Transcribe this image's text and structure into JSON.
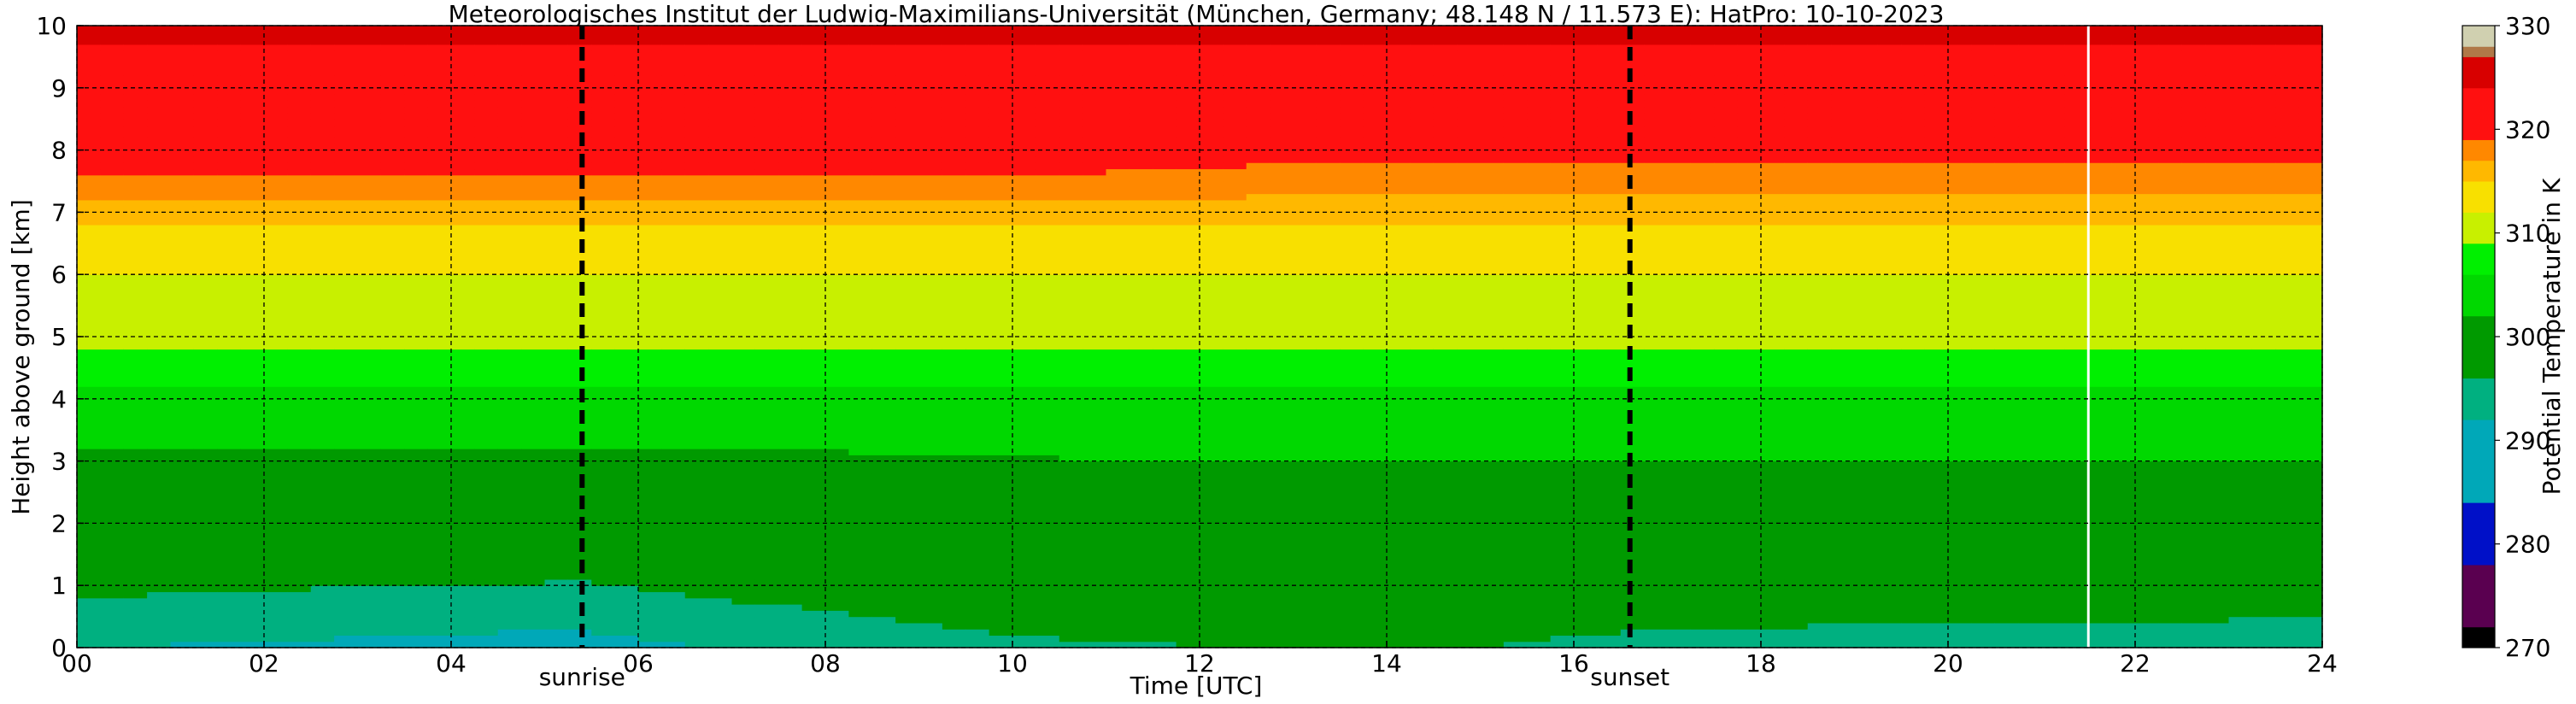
{
  "chart_data": {
    "type": "heatmap",
    "title": "Meteorologisches Institut der Ludwig-Maximilians-Universität (München, Germany; 48.148 N / 11.573 E):    HatPro: 10-10-2023",
    "xlabel": "Time [UTC]",
    "ylabel": "Height above ground [km]",
    "colorbar_label": "Potential Temperature in K",
    "xlim": [
      0,
      24
    ],
    "ylim": [
      0,
      10
    ],
    "clim": [
      270,
      330
    ],
    "x_ticks": [
      "00",
      "02",
      "04",
      "06",
      "08",
      "10",
      "12",
      "14",
      "16",
      "18",
      "20",
      "22",
      "24"
    ],
    "y_ticks": [
      "0",
      "1",
      "2",
      "3",
      "4",
      "5",
      "6",
      "7",
      "8",
      "9",
      "10"
    ],
    "colorbar_ticks": [
      "270",
      "280",
      "290",
      "300",
      "310",
      "320",
      "330"
    ],
    "grid": true,
    "events": [
      {
        "label": "sunrise",
        "time": 5.4
      },
      {
        "label": "sunset",
        "time": 16.6
      }
    ],
    "data_gap_time": 21.5,
    "colormap": [
      {
        "from": 270,
        "to": 272,
        "color": "#000000"
      },
      {
        "from": 272,
        "to": 278,
        "color": "#5a0050"
      },
      {
        "from": 278,
        "to": 284,
        "color": "#0010c8"
      },
      {
        "from": 284,
        "to": 292,
        "color": "#00a8b8"
      },
      {
        "from": 292,
        "to": 296,
        "color": "#00b080"
      },
      {
        "from": 296,
        "to": 302,
        "color": "#009a00"
      },
      {
        "from": 302,
        "to": 306,
        "color": "#00d800"
      },
      {
        "from": 306,
        "to": 309,
        "color": "#00f000"
      },
      {
        "from": 309,
        "to": 312,
        "color": "#c8f000"
      },
      {
        "from": 312,
        "to": 315,
        "color": "#f8e000"
      },
      {
        "from": 315,
        "to": 317,
        "color": "#ffb800"
      },
      {
        "from": 317,
        "to": 319,
        "color": "#ff8800"
      },
      {
        "from": 319,
        "to": 324,
        "color": "#ff1010"
      },
      {
        "from": 324,
        "to": 327,
        "color": "#d80000"
      },
      {
        "from": 327,
        "to": 328,
        "color": "#b07848"
      },
      {
        "from": 328,
        "to": 330,
        "color": "#d0d0b0"
      }
    ],
    "profiles": [
      {
        "time": 0,
        "heights": [
          0,
          0.3,
          0.8,
          1.6,
          2.5,
          3.6,
          4.2,
          4.8,
          5.6,
          6.4,
          7.0,
          7.6,
          8.0,
          9.0,
          10
        ],
        "values": [
          292,
          293,
          296,
          298,
          300,
          303,
          306,
          309,
          311,
          313,
          316,
          319,
          320,
          322,
          325
        ]
      },
      {
        "time": 5.4,
        "heights": [
          0,
          0.3,
          0.8,
          1.6,
          2.5,
          3.6,
          4.2,
          4.8,
          5.6,
          6.4,
          7.0,
          7.6,
          8.0,
          9.0,
          10
        ],
        "values": [
          291,
          292,
          295,
          298,
          300,
          303,
          306,
          309,
          311,
          313,
          316,
          319,
          320,
          322,
          325
        ]
      },
      {
        "time": 10.5,
        "heights": [
          0,
          0.3,
          0.8,
          1.6,
          2.5,
          3.6,
          4.2,
          4.8,
          5.6,
          6.4,
          7.0,
          7.6,
          8.0,
          9.0,
          10
        ],
        "values": [
          295,
          297,
          299,
          300,
          301,
          303,
          306,
          309,
          311,
          313,
          316,
          319,
          320,
          322,
          325
        ]
      },
      {
        "time": 14,
        "heights": [
          0,
          0.3,
          0.8,
          1.6,
          2.5,
          3.6,
          4.2,
          4.8,
          5.6,
          6.4,
          7.0,
          7.6,
          8.0,
          9.0,
          10
        ],
        "values": [
          297,
          298,
          299,
          300,
          301,
          303,
          306,
          309,
          311,
          313,
          316,
          318,
          320,
          322,
          325
        ]
      },
      {
        "time": 17,
        "heights": [
          0,
          0.3,
          0.8,
          1.6,
          2.5,
          3.6,
          4.2,
          4.8,
          5.6,
          6.4,
          7.0,
          7.6,
          8.0,
          9.0,
          10
        ],
        "values": [
          294,
          296,
          298,
          300,
          301,
          303,
          306,
          309,
          311,
          313,
          316,
          318,
          320,
          322,
          325
        ]
      },
      {
        "time": 24,
        "heights": [
          0,
          0.3,
          0.8,
          1.6,
          2.5,
          3.6,
          4.2,
          4.8,
          5.6,
          6.4,
          7.0,
          7.6,
          8.0,
          9.0,
          10
        ],
        "values": [
          293,
          295,
          298,
          300,
          301,
          303,
          306,
          309,
          311,
          313,
          316,
          318,
          320,
          322,
          325
        ]
      }
    ]
  }
}
